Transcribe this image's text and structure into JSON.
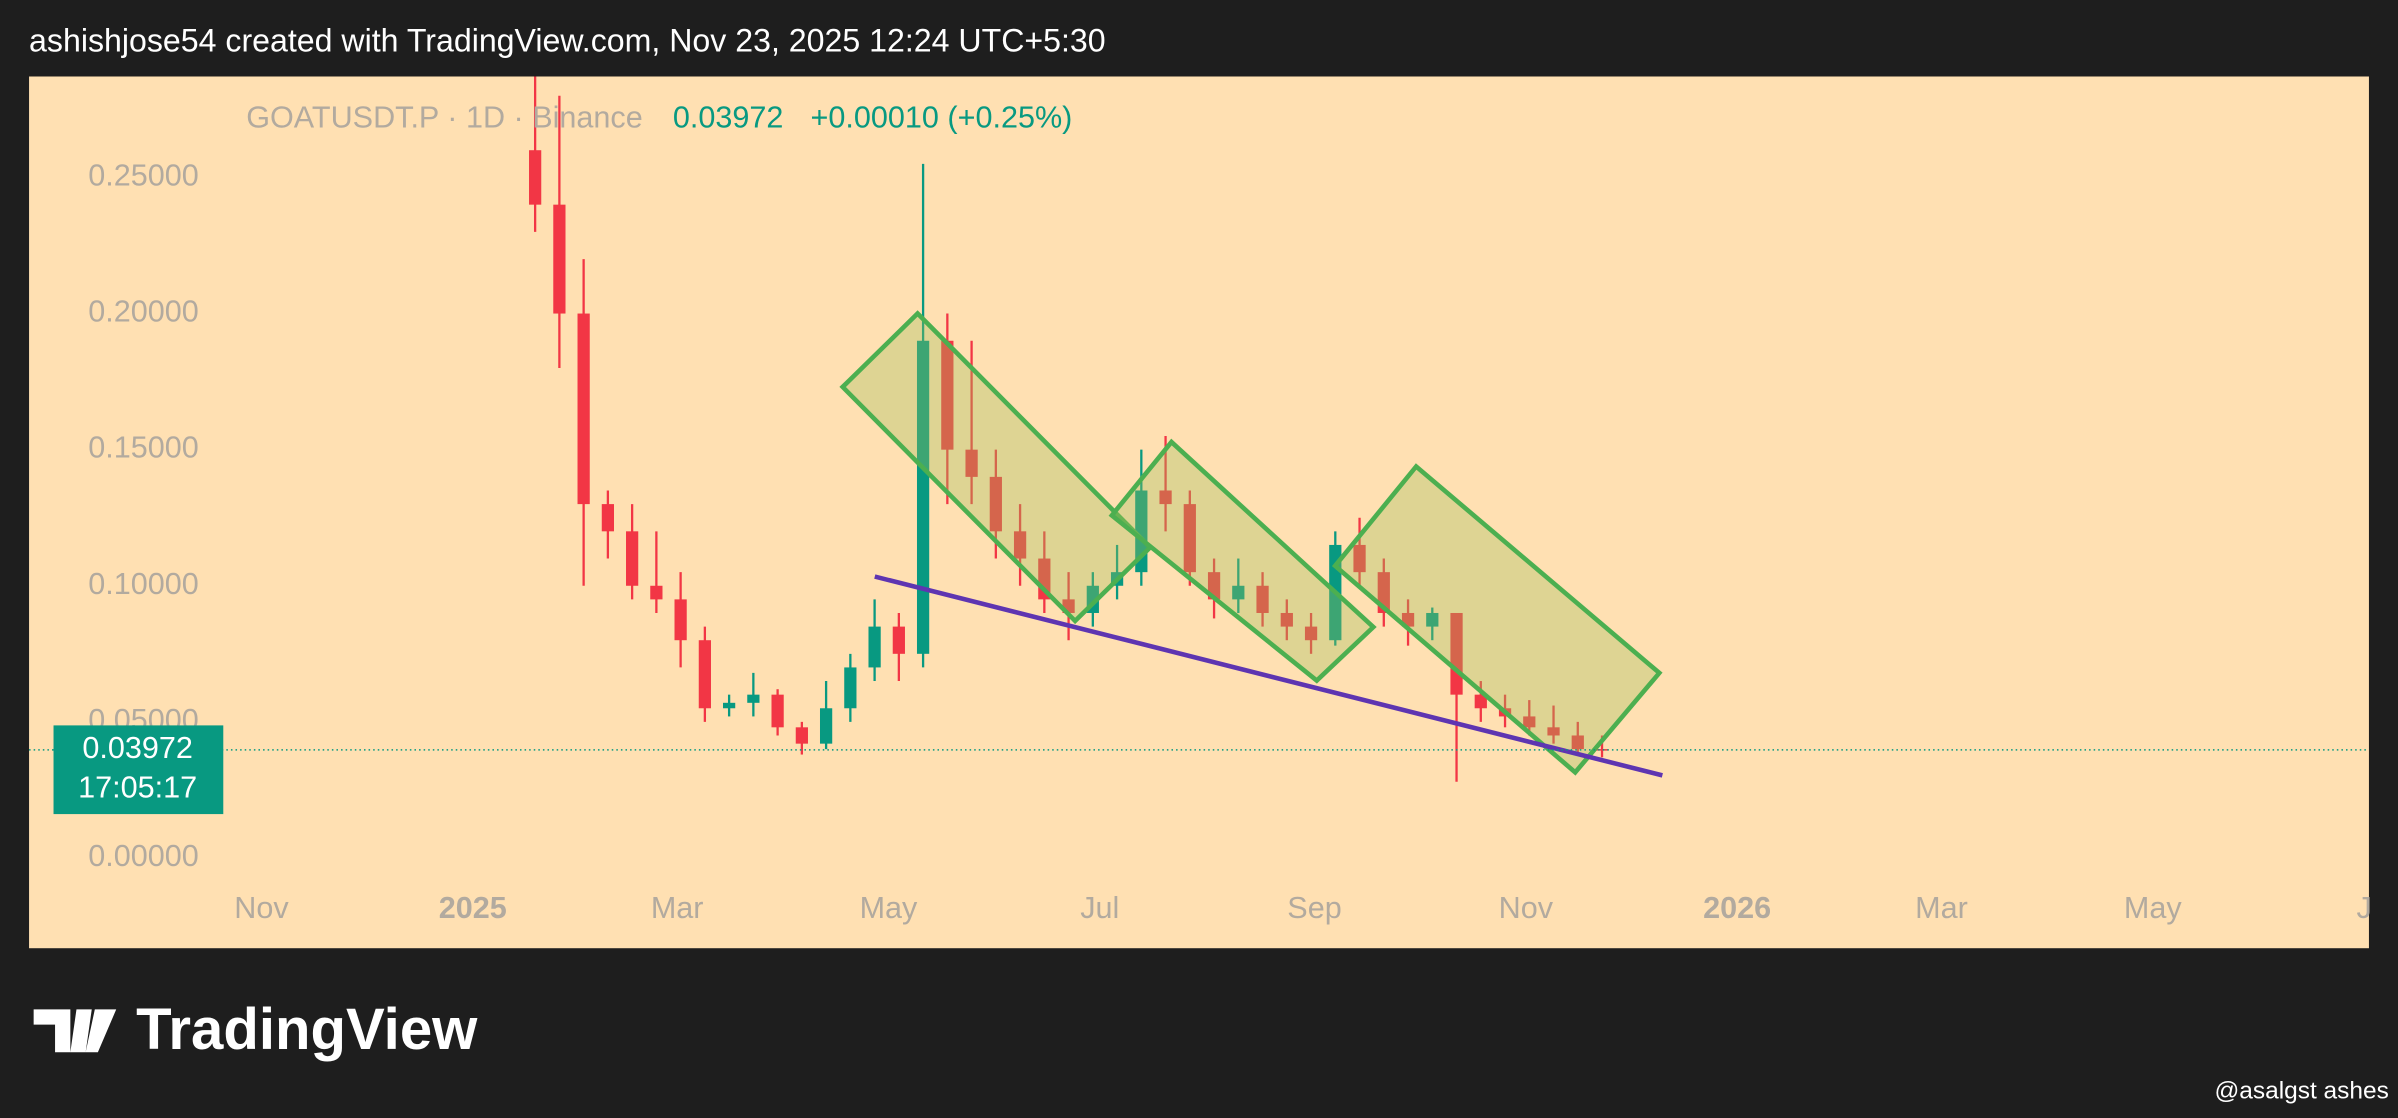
{
  "header": "ashishjose54 created with TradingView.com, Nov 23, 2025 12:24 UTC+5:30",
  "chart_data": {
    "type": "candlestick",
    "symbol": "GOATUSDT.P · 1D · Binance",
    "last_price": 0.03972,
    "change": "+0.00010 (+0.25%)",
    "countdown": "17:05:17",
    "up_color": "#089981",
    "down_color": "#f23645",
    "xlim": [
      -67.1,
      608.4
    ],
    "xticks": [
      {
        "value": 0,
        "label": "Nov"
      },
      {
        "value": 61,
        "label": "2025"
      },
      {
        "value": 120,
        "label": "Mar"
      },
      {
        "value": 181,
        "label": "May"
      },
      {
        "value": 242,
        "label": "Jul"
      },
      {
        "value": 304,
        "label": "Sep"
      },
      {
        "value": 365,
        "label": "Nov"
      },
      {
        "value": 426,
        "label": "2026"
      },
      {
        "value": 485,
        "label": "Mar"
      },
      {
        "value": 546,
        "label": "May"
      },
      {
        "value": 607,
        "label": "J"
      }
    ],
    "ylim": [
      -0.00955,
      0.28708
    ],
    "yticks": [
      {
        "value": 0,
        "label": "0.00000"
      },
      {
        "value": 0.05,
        "label": "0.05000"
      },
      {
        "value": 0.1,
        "label": "0.10000"
      },
      {
        "value": 0.15,
        "label": "0.15000"
      },
      {
        "value": 0.2,
        "label": "0.20000"
      },
      {
        "value": 0.25,
        "label": "0.25000"
      }
    ],
    "candles": {
      "x": [
        79,
        86,
        93,
        100,
        107,
        114,
        121,
        128,
        135,
        142,
        149,
        156,
        163,
        170,
        177,
        184,
        191,
        198,
        205,
        212,
        219,
        226,
        233,
        240,
        247,
        254,
        261,
        268,
        275,
        282,
        289,
        296,
        303,
        310,
        317,
        324,
        331,
        338,
        345,
        352,
        359,
        366,
        373,
        380,
        387
      ],
      "open": [
        0.26,
        0.24,
        0.2,
        0.13,
        0.12,
        0.1,
        0.095,
        0.08,
        0.055,
        0.057,
        0.06,
        0.048,
        0.042,
        0.055,
        0.07,
        0.085,
        0.075,
        0.19,
        0.15,
        0.14,
        0.12,
        0.11,
        0.095,
        0.09,
        0.1,
        0.105,
        0.135,
        0.13,
        0.105,
        0.095,
        0.1,
        0.09,
        0.085,
        0.08,
        0.115,
        0.105,
        0.09,
        0.085,
        0.09,
        0.06,
        0.055,
        0.052,
        0.048,
        0.045,
        0.04
      ],
      "high": [
        0.3,
        0.28,
        0.22,
        0.135,
        0.13,
        0.12,
        0.105,
        0.085,
        0.06,
        0.068,
        0.062,
        0.05,
        0.065,
        0.075,
        0.095,
        0.09,
        0.255,
        0.2,
        0.19,
        0.15,
        0.13,
        0.12,
        0.105,
        0.105,
        0.115,
        0.15,
        0.155,
        0.135,
        0.11,
        0.11,
        0.105,
        0.095,
        0.09,
        0.12,
        0.125,
        0.11,
        0.095,
        0.092,
        0.09,
        0.065,
        0.06,
        0.058,
        0.056,
        0.05,
        0.045
      ],
      "low": [
        0.23,
        0.18,
        0.1,
        0.11,
        0.095,
        0.09,
        0.07,
        0.05,
        0.052,
        0.052,
        0.045,
        0.038,
        0.04,
        0.05,
        0.065,
        0.065,
        0.07,
        0.13,
        0.13,
        0.11,
        0.1,
        0.09,
        0.08,
        0.085,
        0.095,
        0.1,
        0.12,
        0.1,
        0.088,
        0.09,
        0.085,
        0.08,
        0.075,
        0.078,
        0.1,
        0.085,
        0.078,
        0.08,
        0.028,
        0.05,
        0.048,
        0.045,
        0.042,
        0.038,
        0.037
      ],
      "close": [
        0.24,
        0.2,
        0.13,
        0.12,
        0.1,
        0.095,
        0.08,
        0.055,
        0.057,
        0.06,
        0.048,
        0.042,
        0.055,
        0.07,
        0.085,
        0.075,
        0.19,
        0.15,
        0.14,
        0.12,
        0.11,
        0.095,
        0.09,
        0.1,
        0.105,
        0.135,
        0.13,
        0.105,
        0.095,
        0.1,
        0.09,
        0.085,
        0.08,
        0.115,
        0.105,
        0.09,
        0.085,
        0.09,
        0.06,
        0.055,
        0.052,
        0.048,
        0.045,
        0.04,
        0.03972
      ]
    }
  },
  "footer": {
    "brand": "TradingView",
    "watermark": "@asalgst ashes"
  }
}
